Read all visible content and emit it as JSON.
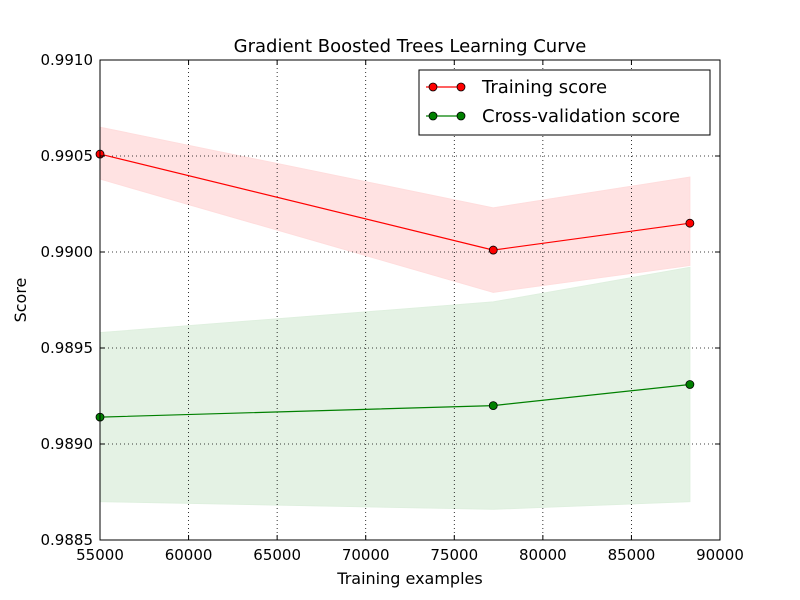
{
  "chart_data": {
    "type": "line",
    "title": "Gradient Boosted Trees Learning Curve",
    "xlabel": "Training examples",
    "ylabel": "Score",
    "xlim": [
      55000,
      90000
    ],
    "ylim": [
      0.9885,
      0.991
    ],
    "xticks": [
      55000,
      60000,
      65000,
      70000,
      75000,
      80000,
      85000,
      90000
    ],
    "xtick_labels": [
      "55000",
      "60000",
      "65000",
      "70000",
      "75000",
      "80000",
      "85000",
      "90000"
    ],
    "yticks": [
      0.9885,
      0.989,
      0.9895,
      0.99,
      0.9905,
      0.991
    ],
    "ytick_labels": [
      "0.9885",
      "0.9890",
      "0.9895",
      "0.9900",
      "0.9905",
      "0.9910"
    ],
    "grid": true,
    "legend_position": "top-right",
    "series": [
      {
        "name": "Training score",
        "color": "#ff0000",
        "band_color": "#ffdddd",
        "x": [
          55000,
          77200,
          88300
        ],
        "y": [
          0.99051,
          0.99001,
          0.99015
        ],
        "band_lower": [
          0.99038,
          0.98979,
          0.98993
        ],
        "band_upper": [
          0.99065,
          0.99023,
          0.99039
        ]
      },
      {
        "name": "Cross-validation score",
        "color": "#008000",
        "band_color": "#dff0df",
        "x": [
          55000,
          77200,
          88300
        ],
        "y": [
          0.98914,
          0.9892,
          0.98931
        ],
        "band_lower": [
          0.9887,
          0.98866,
          0.9887
        ],
        "band_upper": [
          0.98958,
          0.98974,
          0.98992
        ]
      }
    ]
  }
}
